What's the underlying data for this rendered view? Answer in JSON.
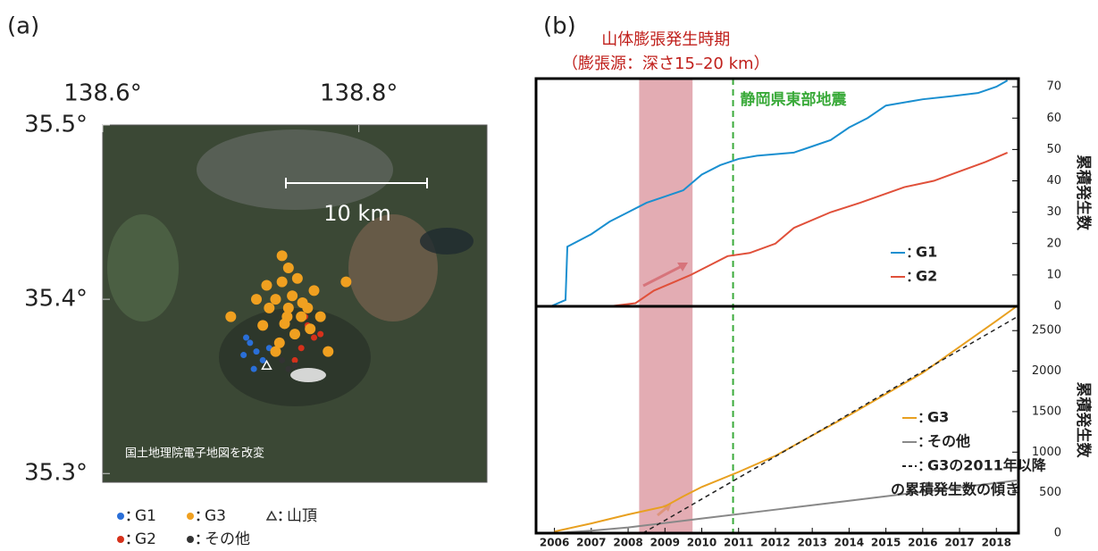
{
  "panel_labels": [
    "(a)",
    "(b)"
  ],
  "chart_data": [
    {
      "type": "scatter",
      "xlim": [
        138.6,
        138.9
      ],
      "ylim": [
        35.295,
        35.5
      ],
      "xticks": [
        {
          "value": 138.6,
          "label": "138.6°"
        },
        {
          "value": 138.8,
          "label": "138.8°"
        }
      ],
      "yticks": [
        {
          "value": 35.5,
          "label": "35.5°"
        },
        {
          "value": 35.4,
          "label": "35.4°"
        },
        {
          "value": 35.3,
          "label": "35.3°"
        }
      ],
      "scale_label": "10 km",
      "attribution": "国土地理院電子地図を改変",
      "summit": {
        "label": "山頂",
        "x": 138.728,
        "y": 35.362
      },
      "series": [
        {
          "name": "G1",
          "color": "#2a6fd8",
          "x": [
            138.715,
            138.72,
            138.71,
            138.725,
            138.718,
            138.73,
            138.712
          ],
          "y": [
            35.375,
            35.37,
            35.368,
            35.365,
            35.36,
            35.372,
            35.378
          ]
        },
        {
          "name": "G2",
          "color": "#d6311b",
          "x": [
            138.76,
            138.765,
            138.755,
            138.77,
            138.75,
            138.758
          ],
          "y": [
            35.385,
            35.378,
            35.372,
            35.38,
            35.365,
            35.39
          ]
        },
        {
          "name": "G3",
          "color": "#f0a020",
          "x": [
            138.745,
            138.735,
            138.755,
            138.725,
            138.765,
            138.74,
            138.75,
            138.73,
            138.76,
            138.745,
            138.72,
            138.77,
            138.738,
            138.752,
            138.742,
            138.728,
            138.762,
            138.748,
            138.735,
            138.756,
            138.744,
            138.79,
            138.7,
            138.776,
            138.74
          ],
          "y": [
            35.395,
            35.4,
            35.39,
            35.385,
            35.405,
            35.41,
            35.38,
            35.395,
            35.395,
            35.418,
            35.4,
            35.39,
            35.375,
            35.412,
            35.386,
            35.408,
            35.383,
            35.402,
            35.37,
            35.398,
            35.39,
            35.41,
            35.39,
            35.37,
            35.425
          ]
        },
        {
          "name": "その他",
          "color": "#333333",
          "x": [
            138.74,
            138.745,
            138.75
          ],
          "y": [
            35.365,
            35.36,
            35.362
          ]
        }
      ]
    },
    {
      "type": "line",
      "ylabel": "累積発生数",
      "xlim": [
        2005.5,
        2018.6
      ],
      "ylim": [
        0,
        72.6
      ],
      "yticks": [
        0,
        10,
        20,
        30,
        40,
        50,
        60,
        70
      ],
      "shaded_span": {
        "x": [
          2008.3,
          2009.75
        ],
        "color": "#d9909a",
        "label": [
          "山体膨張発生時期",
          "（膨張源：深さ15–20 km）"
        ]
      },
      "event": {
        "x": 2010.85,
        "label": "静岡県東部地震",
        "color": "#3aaa3a"
      },
      "series": [
        {
          "name": "G1",
          "color": "#1a8fd0",
          "x": [
            2005.9,
            2006.3,
            2006.35,
            2007,
            2007.5,
            2008,
            2008.5,
            2009,
            2009.5,
            2010,
            2010.5,
            2011,
            2011.5,
            2012.5,
            2013,
            2013.5,
            2014,
            2014.5,
            2015,
            2016,
            2016.8,
            2017.5,
            2018,
            2018.3
          ],
          "values": [
            0,
            2,
            19,
            23,
            27,
            30,
            33,
            35,
            37,
            42,
            45,
            47,
            48,
            49,
            51,
            53,
            57,
            60,
            64,
            66,
            67,
            68,
            70,
            72
          ]
        },
        {
          "name": "G2",
          "color": "#e0503a",
          "x": [
            2005.9,
            2007.5,
            2008.2,
            2008.7,
            2009.3,
            2009.7,
            2010.2,
            2010.7,
            2011.3,
            2012,
            2012.5,
            2013.5,
            2014.3,
            2015.5,
            2016.3,
            2017,
            2017.7,
            2018.3
          ],
          "values": [
            0,
            0,
            1,
            5,
            8,
            10,
            13,
            16,
            17,
            20,
            25,
            30,
            33,
            38,
            40,
            43,
            46,
            49
          ]
        }
      ]
    },
    {
      "type": "line",
      "ylabel": "累積発生数",
      "xlim": [
        2005.5,
        2018.6
      ],
      "ylim": [
        0,
        2800
      ],
      "yticks": [
        0,
        500,
        1000,
        1500,
        2000,
        2500
      ],
      "xticks": [
        2006,
        2007,
        2008,
        2009,
        2010,
        2011,
        2012,
        2013,
        2014,
        2015,
        2016,
        2017,
        2018
      ],
      "trend_label": [
        "G3の2011年以降",
        "の累積発生数の傾き"
      ],
      "series": [
        {
          "name": "G3",
          "color": "#e8a020",
          "x": [
            2006,
            2007,
            2008,
            2009,
            2009.5,
            2010,
            2011,
            2012,
            2014,
            2016,
            2018,
            2018.55
          ],
          "values": [
            20,
            120,
            230,
            330,
            455,
            570,
            755,
            955,
            1455,
            1980,
            2620,
            2800
          ]
        },
        {
          "name": "その他",
          "color": "#888888",
          "x": [
            2006,
            2007,
            2008,
            2010,
            2012,
            2014,
            2016,
            2018,
            2018.55
          ],
          "values": [
            0,
            30,
            70,
            180,
            290,
            400,
            510,
            620,
            650
          ]
        },
        {
          "color": "#222222",
          "dash": true,
          "x": [
            2008.4,
            2018.6
          ],
          "values": [
            0,
            2680
          ]
        }
      ]
    }
  ]
}
